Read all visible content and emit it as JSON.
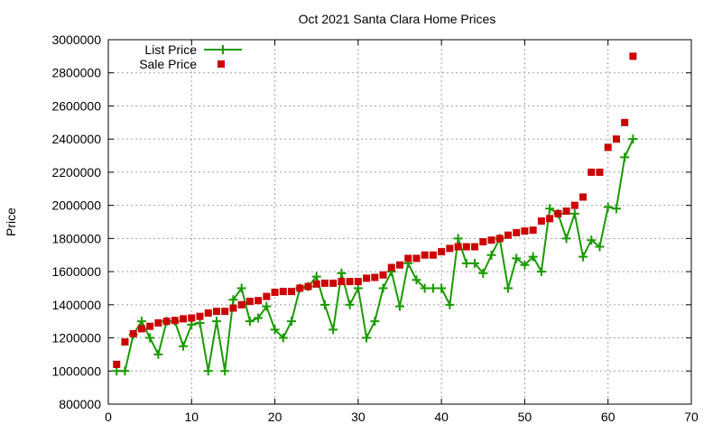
{
  "chart_data": {
    "type": "line",
    "title": "Oct 2021 Santa Clara Home Prices",
    "xlabel": "",
    "ylabel": "Price",
    "xlim": [
      0,
      70
    ],
    "ylim": [
      800000,
      3000000
    ],
    "x_ticks": [
      0,
      10,
      20,
      30,
      40,
      50,
      60,
      70
    ],
    "y_ticks": [
      800000,
      1000000,
      1200000,
      1400000,
      1600000,
      1800000,
      2000000,
      2200000,
      2400000,
      2600000,
      2800000,
      3000000
    ],
    "grid": true,
    "legend_position": "top-left",
    "series": [
      {
        "name": "List Price",
        "style": "line+plus",
        "color": "#1a9a00",
        "x": [
          1,
          2,
          3,
          4,
          5,
          6,
          7,
          8,
          9,
          10,
          11,
          12,
          13,
          14,
          15,
          16,
          17,
          18,
          19,
          20,
          21,
          22,
          23,
          24,
          25,
          26,
          27,
          28,
          29,
          30,
          31,
          32,
          33,
          34,
          35,
          36,
          37,
          38,
          39,
          40,
          41,
          42,
          43,
          44,
          45,
          46,
          47,
          48,
          49,
          50,
          51,
          52,
          53,
          54,
          55,
          56,
          57,
          58,
          59,
          60,
          61,
          62,
          63
        ],
        "values": [
          1000000,
          1000000,
          1220000,
          1300000,
          1200000,
          1100000,
          1300000,
          1300000,
          1150000,
          1280000,
          1290000,
          1000000,
          1300000,
          1000000,
          1430000,
          1500000,
          1300000,
          1320000,
          1390000,
          1250000,
          1200000,
          1300000,
          1500000,
          1510000,
          1570000,
          1400000,
          1250000,
          1590000,
          1400000,
          1500000,
          1200000,
          1300000,
          1500000,
          1600000,
          1390000,
          1650000,
          1550000,
          1500000,
          1500000,
          1500000,
          1400000,
          1800000,
          1650000,
          1650000,
          1590000,
          1700000,
          1800000,
          1500000,
          1680000,
          1640000,
          1690000,
          1600000,
          1980000,
          1950000,
          1800000,
          1950000,
          1690000,
          1790000,
          1750000,
          1990000,
          1980000,
          2290000,
          2400000
        ]
      },
      {
        "name": "Sale Price",
        "style": "square",
        "color": "#cc0000",
        "x": [
          1,
          2,
          3,
          4,
          5,
          6,
          7,
          8,
          9,
          10,
          11,
          12,
          13,
          14,
          15,
          16,
          17,
          18,
          19,
          20,
          21,
          22,
          23,
          24,
          25,
          26,
          27,
          28,
          29,
          30,
          31,
          32,
          33,
          34,
          35,
          36,
          37,
          38,
          39,
          40,
          41,
          42,
          43,
          44,
          45,
          46,
          47,
          48,
          49,
          50,
          51,
          52,
          53,
          54,
          55,
          56,
          57,
          58,
          59,
          60,
          61,
          62,
          63
        ],
        "values": [
          1040000,
          1175000,
          1225000,
          1255000,
          1270000,
          1290000,
          1300000,
          1305000,
          1315000,
          1320000,
          1330000,
          1350000,
          1360000,
          1360000,
          1380000,
          1400000,
          1420000,
          1425000,
          1450000,
          1475000,
          1480000,
          1480000,
          1500000,
          1510000,
          1525000,
          1530000,
          1530000,
          1540000,
          1540000,
          1540000,
          1560000,
          1565000,
          1580000,
          1625000,
          1640000,
          1680000,
          1680000,
          1700000,
          1700000,
          1720000,
          1740000,
          1750000,
          1750000,
          1750000,
          1780000,
          1790000,
          1800000,
          1820000,
          1835000,
          1845000,
          1850000,
          1905000,
          1920000,
          1950000,
          1965000,
          2000000,
          2050000,
          2200000,
          2200000,
          2350000,
          2400000,
          2500000,
          2900000
        ]
      }
    ]
  }
}
